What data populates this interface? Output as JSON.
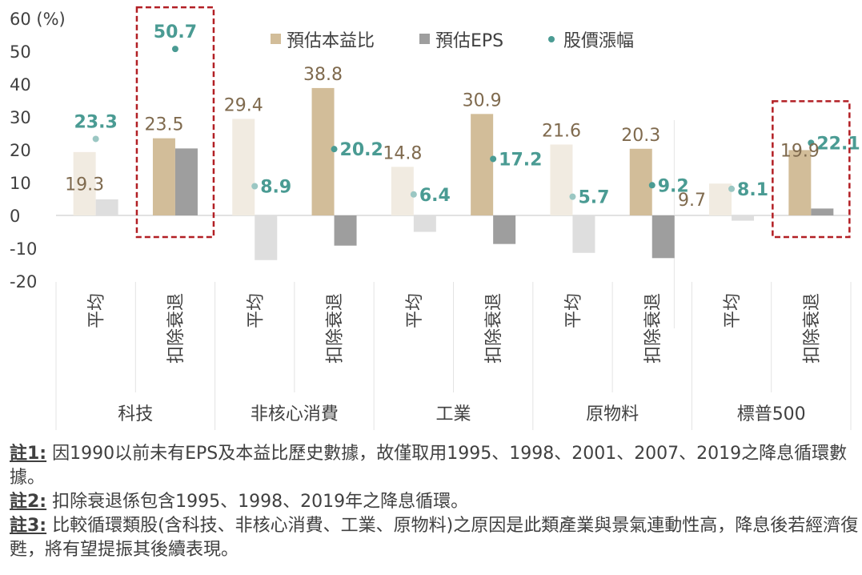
{
  "chart_data": {
    "type": "bar",
    "title": "",
    "y_unit_label": "(%)",
    "ylim": [
      -20,
      60
    ],
    "yticks": [
      60,
      50,
      40,
      30,
      20,
      10,
      0,
      -10,
      -20
    ],
    "legend": [
      {
        "name": "預估本益比",
        "color": "#d2bd99",
        "marker": "square"
      },
      {
        "name": "預估EPS",
        "color": "#9e9e9e",
        "marker": "square"
      },
      {
        "name": "股價漲幅",
        "color": "#4a9b93",
        "marker": "dot"
      }
    ],
    "groups": [
      {
        "name": "科技",
        "subs": [
          {
            "label": "平均",
            "pe": 19.3,
            "eps": 4.9,
            "price": 23.3,
            "faded": true,
            "highlight": false
          },
          {
            "label": "扣除衰退",
            "pe": 23.5,
            "eps": 20.4,
            "price": 50.7,
            "faded": false,
            "highlight": true
          }
        ]
      },
      {
        "name": "非核心消費",
        "subs": [
          {
            "label": "平均",
            "pe": 29.4,
            "eps": -13.6,
            "price": 8.9,
            "faded": true,
            "highlight": false
          },
          {
            "label": "扣除衰退",
            "pe": 38.8,
            "eps": -9.2,
            "price": 20.2,
            "faded": false,
            "highlight": false
          }
        ]
      },
      {
        "name": "工業",
        "subs": [
          {
            "label": "平均",
            "pe": 14.8,
            "eps": -5.0,
            "price": 6.4,
            "faded": true,
            "highlight": false
          },
          {
            "label": "扣除衰退",
            "pe": 30.9,
            "eps": -8.7,
            "price": 17.2,
            "faded": false,
            "highlight": false
          }
        ]
      },
      {
        "name": "原物料",
        "subs": [
          {
            "label": "平均",
            "pe": 21.6,
            "eps": -11.4,
            "price": 5.7,
            "faded": true,
            "highlight": false
          },
          {
            "label": "扣除衰退",
            "pe": 20.3,
            "eps": -13.0,
            "price": 9.2,
            "faded": false,
            "highlight": false
          }
        ]
      },
      {
        "name": "標普500",
        "subs": [
          {
            "label": "平均",
            "pe": 9.7,
            "eps": -1.6,
            "price": 8.1,
            "faded": true,
            "highlight": false
          },
          {
            "label": "扣除衰退",
            "pe": 19.9,
            "eps": 2.1,
            "price": 22.1,
            "faded": false,
            "highlight": true
          }
        ]
      }
    ]
  },
  "notes": [
    {
      "label": "註1:",
      "text": " 因1990以前未有EPS及本益比歷史數據，故僅取用1995、1998、2001、2007、2019之降息循環數據。"
    },
    {
      "label": "註2:",
      "text": " 扣除衰退係包含1995、1998、2019年之降息循環。"
    },
    {
      "label": "註3:",
      "text": " 比較循環類股(含科技、非核心消費、工業、原物料)之原因是此類產業與景氣連動性高，降息後若經濟復甦，將有望提振其後續表現。"
    }
  ]
}
